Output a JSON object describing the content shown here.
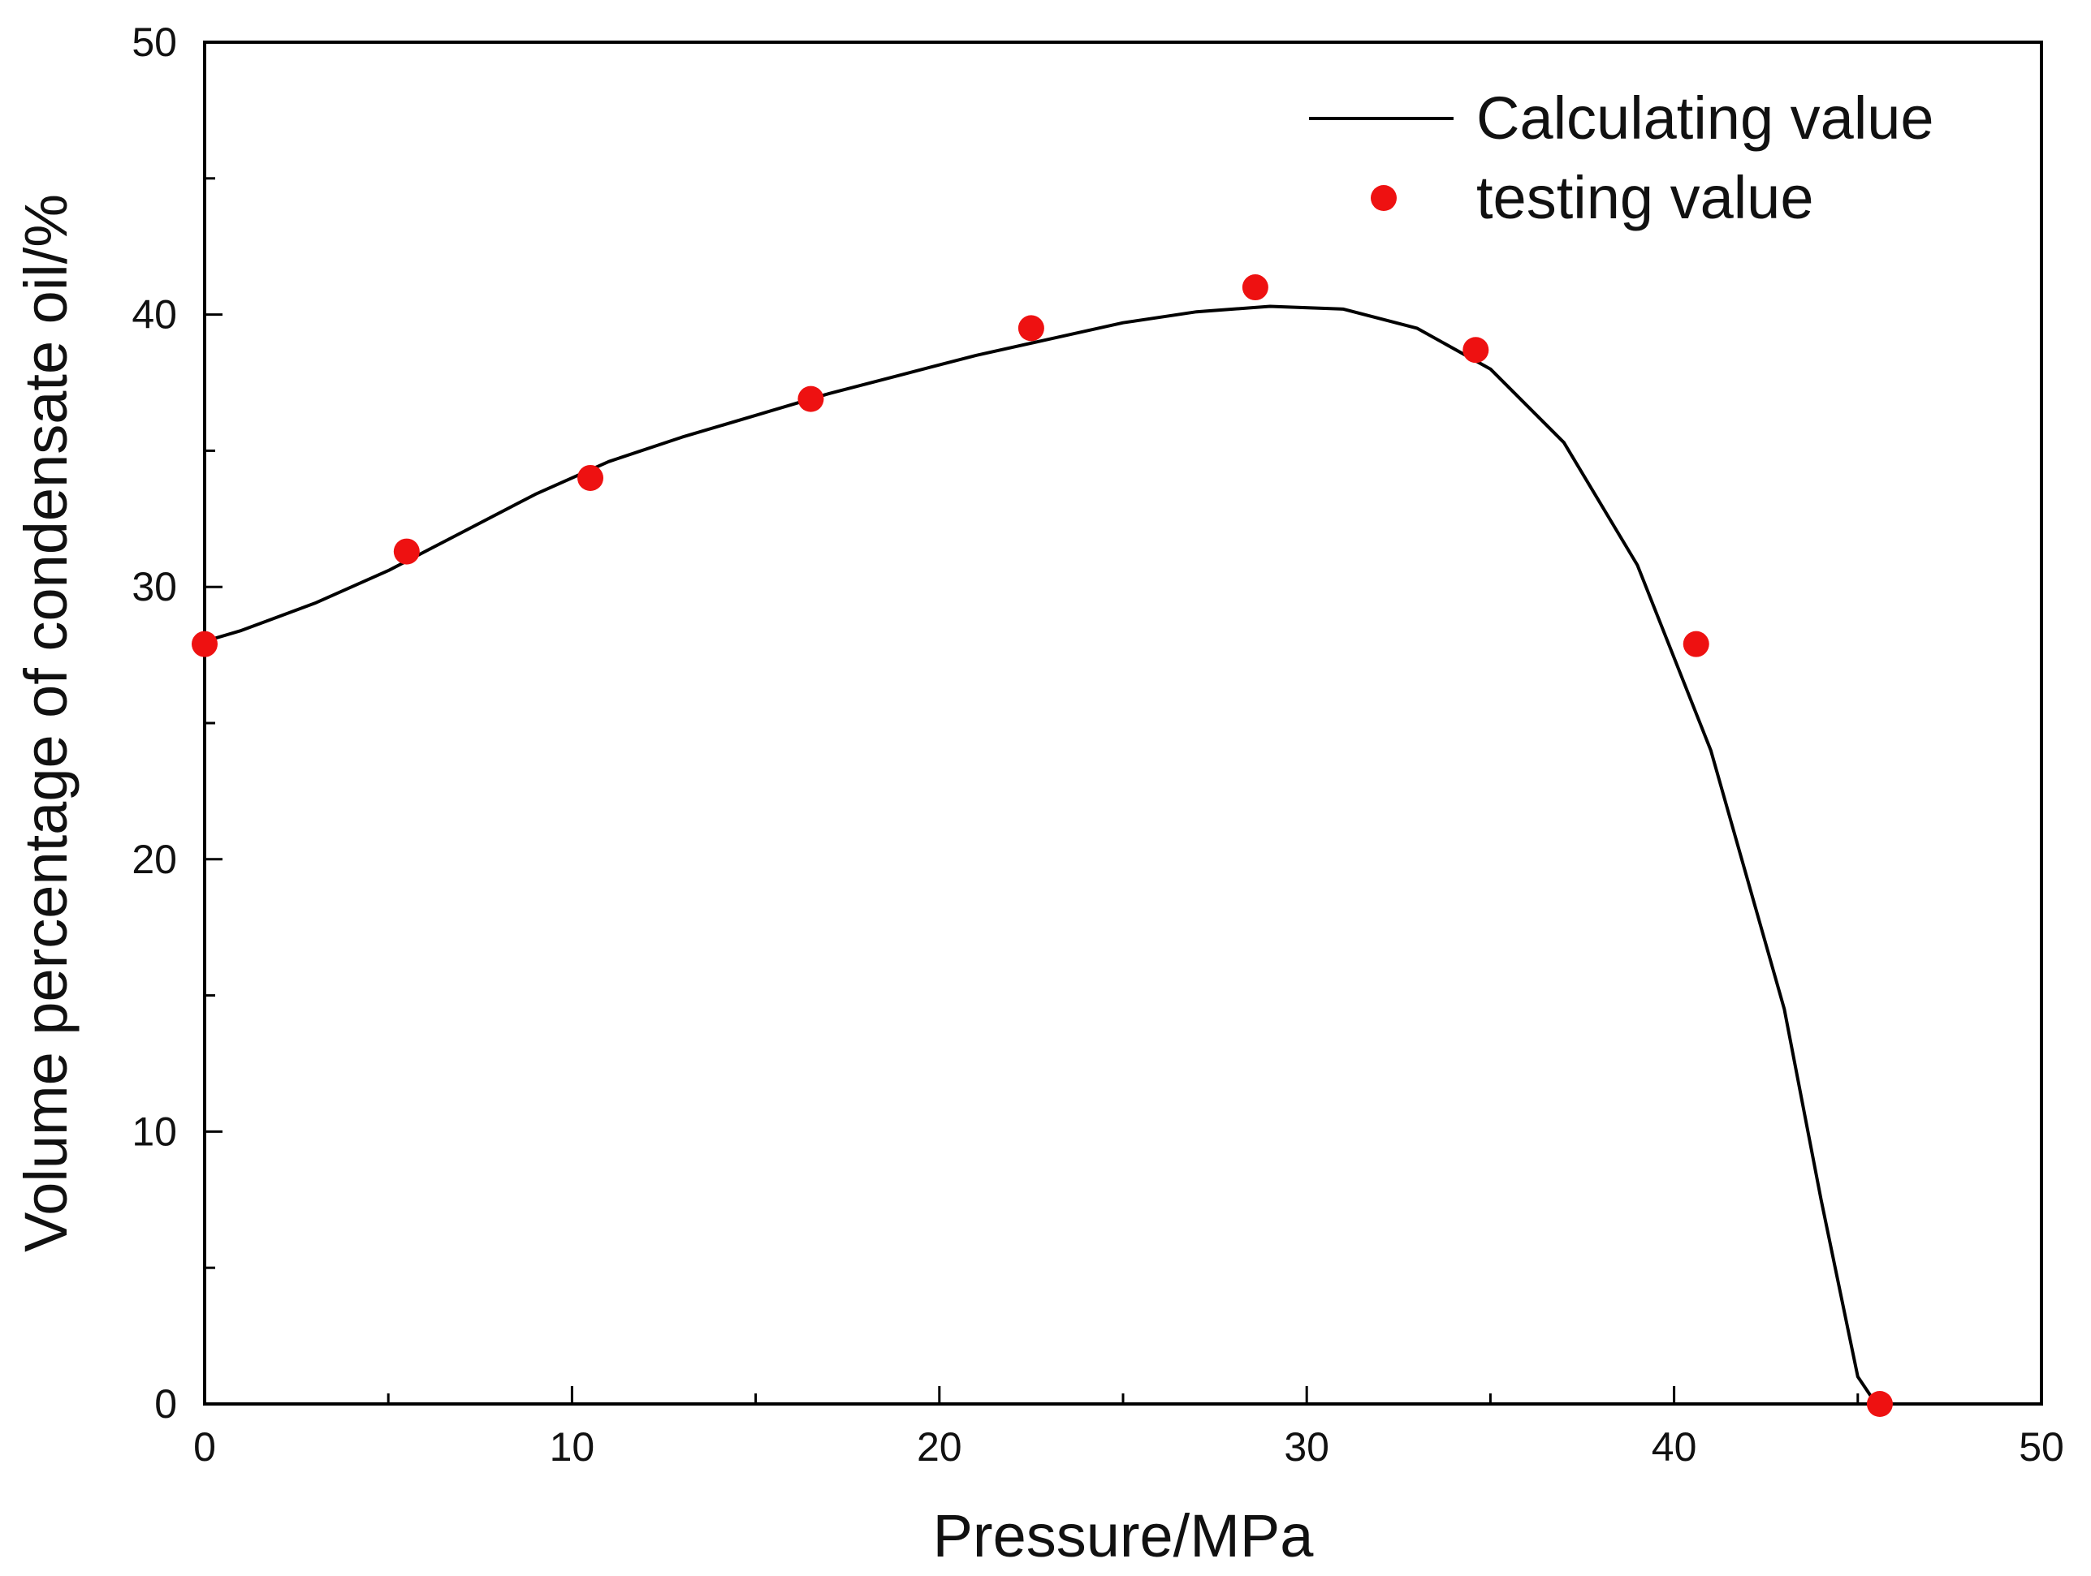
{
  "chart_data": {
    "type": "line",
    "title": "",
    "xlabel": "Pressure/MPa",
    "ylabel": "Volume percentage of condensate oil/%",
    "xlim": [
      0,
      50
    ],
    "ylim": [
      0,
      50
    ],
    "xticks": [
      0,
      10,
      20,
      30,
      40,
      50
    ],
    "yticks": [
      0,
      10,
      20,
      30,
      40,
      50
    ],
    "grid": false,
    "legend_position": "top-right",
    "series": [
      {
        "name": "Calculating value",
        "kind": "line",
        "color": "#000000",
        "x": [
          0,
          1,
          3,
          5,
          7,
          9,
          11,
          13,
          15,
          17,
          19,
          21,
          23,
          25,
          27,
          29,
          31,
          33,
          35,
          37,
          39,
          41,
          43,
          44,
          45,
          45.5
        ],
        "y": [
          28.0,
          28.4,
          29.4,
          30.6,
          32.0,
          33.4,
          34.6,
          35.5,
          36.3,
          37.1,
          37.8,
          38.5,
          39.1,
          39.7,
          40.1,
          40.3,
          40.2,
          39.5,
          38.0,
          35.3,
          30.8,
          24.0,
          14.5,
          7.5,
          1.0,
          0.0
        ]
      },
      {
        "name": "testing value",
        "kind": "scatter",
        "color": "#ee1111",
        "x": [
          0,
          5.5,
          10.5,
          16.5,
          22.5,
          28.6,
          34.6,
          40.6,
          45.6
        ],
        "y": [
          27.9,
          31.3,
          34.0,
          36.9,
          39.5,
          41.0,
          38.7,
          27.9,
          0.0
        ]
      }
    ]
  }
}
